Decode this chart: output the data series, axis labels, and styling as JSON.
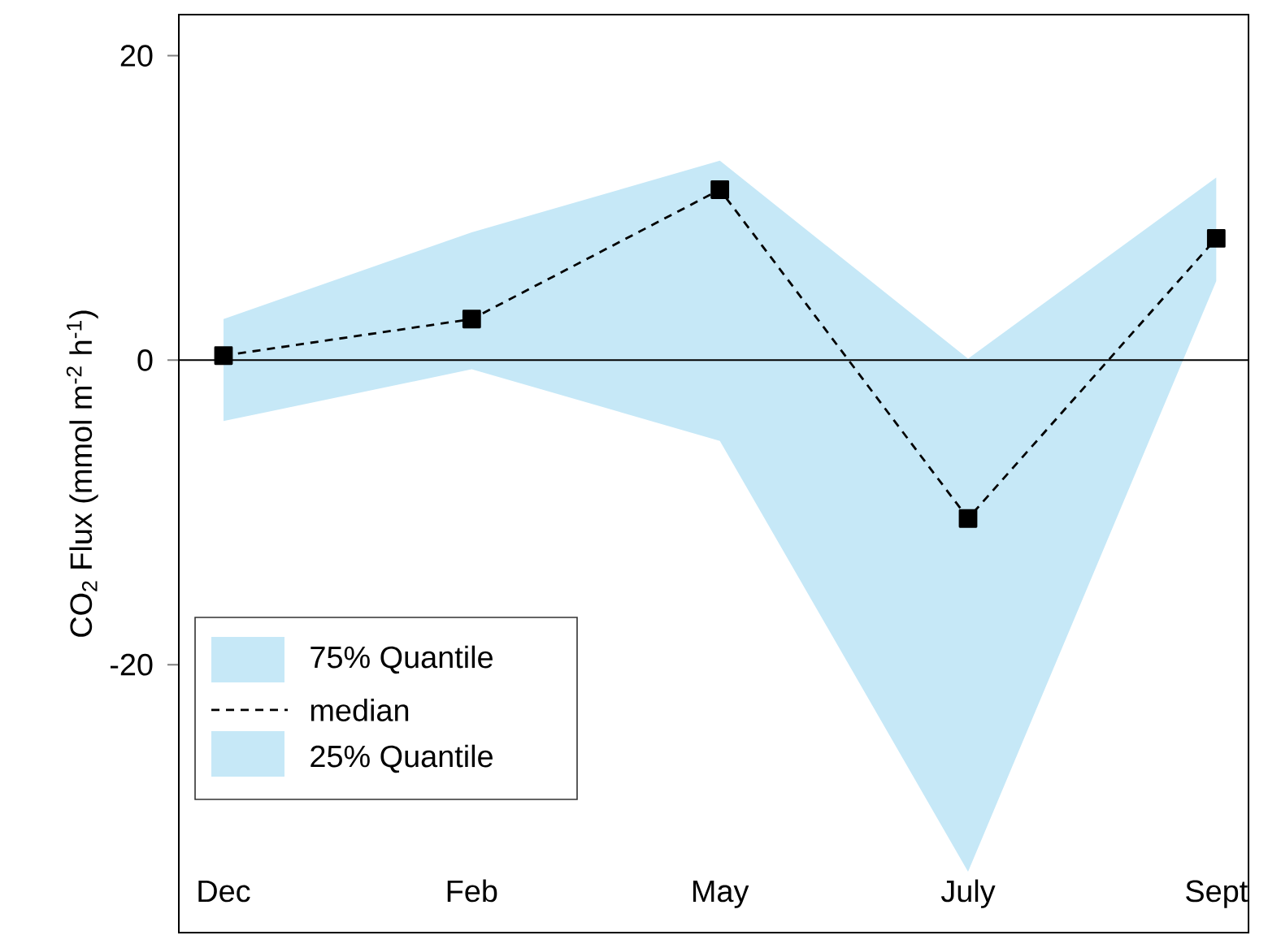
{
  "chart_data": {
    "type": "line",
    "ylabel": "CO$_{2}$ Flux (mmol m$^{-2}$ h$^{-1}$)",
    "categories": [
      "Dec",
      "Feb",
      "May",
      "July",
      "Sept"
    ],
    "series": [
      {
        "name": "median",
        "color": "#000000",
        "values": [
          0.3,
          2.7,
          11.2,
          -10.4,
          8.0
        ],
        "lower": [
          -4.0,
          -0.6,
          -5.3,
          -33.6,
          5.2
        ],
        "upper": [
          2.7,
          8.4,
          13.1,
          0.1,
          12.0
        ]
      }
    ],
    "annotations": [
      "75% Quantile",
      "25% Quantile"
    ],
    "ref_lines": [
      {
        "axis": "y",
        "value": 0
      }
    ],
    "ylim": [
      -37.6,
      22.7
    ],
    "yticks": [
      -20,
      0,
      20
    ],
    "marker": "square",
    "line_style": "dashed",
    "legend": "bottom left",
    "grid": false
  }
}
